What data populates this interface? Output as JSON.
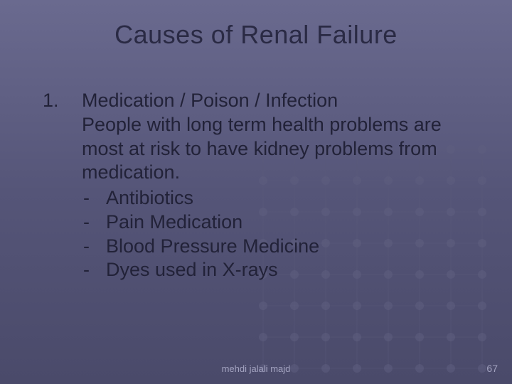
{
  "colors": {
    "background_top": "#6a6a8f",
    "background_mid": "#555578",
    "background_bottom": "#4a4a6a",
    "title_color": "#2a2a44",
    "body_color": "#222238",
    "footer_color": "#a3a3c0",
    "grid_dot": "#5f5f80",
    "grid_line": "#5a5a7a"
  },
  "typography": {
    "title_fontsize": 36,
    "body_fontsize": 27,
    "footer_fontsize": 13,
    "font_family": "Arial"
  },
  "title": "Causes of Renal Failure",
  "list": {
    "number": "1.",
    "heading": "Medication / Poison / Infection",
    "description": "People with long term health problems are most at risk to have kidney problems from medication.",
    "bullet_marker": "-",
    "items": [
      "Antibiotics",
      "Pain Medication",
      "Blood Pressure Medicine",
      "Dyes used in X-rays"
    ]
  },
  "footer": {
    "author": "mehdi jalali majd",
    "page": "67"
  },
  "grid": {
    "rows": 8,
    "cols": 8,
    "spacing": 44,
    "dot_radius": 6
  }
}
